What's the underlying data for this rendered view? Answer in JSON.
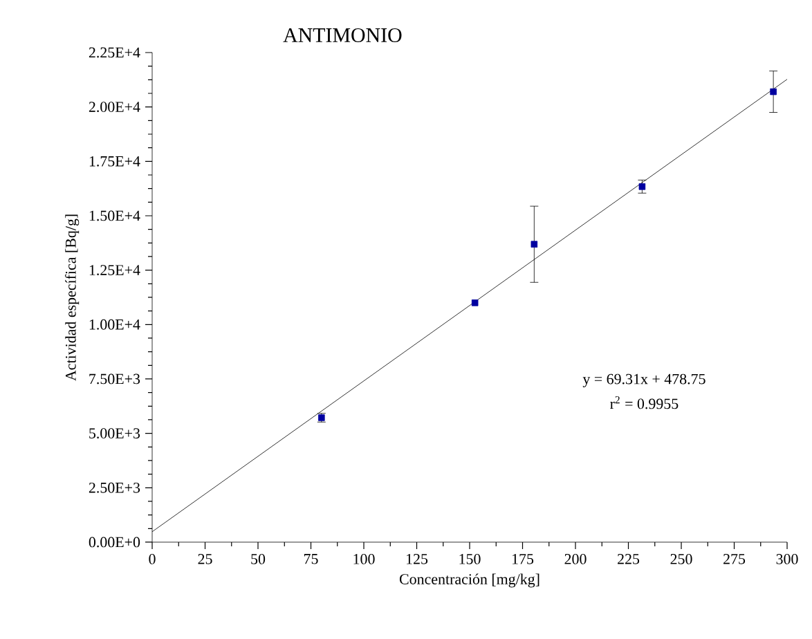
{
  "chart_data": {
    "type": "scatter",
    "title": "ANTIMONIO",
    "xlabel": "Concentración [mg/kg]",
    "ylabel": "Actividad específica [Bq/g]",
    "annotations": [
      "y = 69.31x + 478.75",
      "r$^{2}$ = 0.9955"
    ],
    "series": [
      {
        "color": "#0000a0",
        "marker": "square",
        "x": [
          80,
          152.5,
          180.5,
          231.5,
          293.5
        ],
        "values": [
          5720,
          11000,
          13690,
          16340,
          20700
        ],
        "errors": [
          200,
          null,
          1750,
          300,
          950
        ]
      },
      {
        "type": "line",
        "color": "#000000",
        "marker": "none",
        "x": [
          0,
          300
        ],
        "values": [
          480,
          21270
        ]
      }
    ],
    "xlim": [
      0,
      300
    ],
    "xticks": [
      0,
      25,
      50,
      75,
      100,
      125,
      150,
      175,
      200,
      225,
      250,
      275,
      300
    ],
    "ylim": [
      0,
      22500
    ],
    "yticks": [
      {
        "value": 0,
        "label": "0.00E+0"
      },
      {
        "value": 2500,
        "label": "2.50E+3"
      },
      {
        "value": 5000,
        "label": "5.00E+3"
      },
      {
        "value": 7500,
        "label": "7.50E+3"
      },
      {
        "value": 10000,
        "label": "1.00E+4"
      },
      {
        "value": 12500,
        "label": "1.25E+4"
      },
      {
        "value": 15000,
        "label": "1.50E+4"
      },
      {
        "value": 17500,
        "label": "1.75E+4"
      },
      {
        "value": 20000,
        "label": "2.00E+4"
      },
      {
        "value": 22500,
        "label": "2.25E+4"
      }
    ],
    "grid": false
  }
}
